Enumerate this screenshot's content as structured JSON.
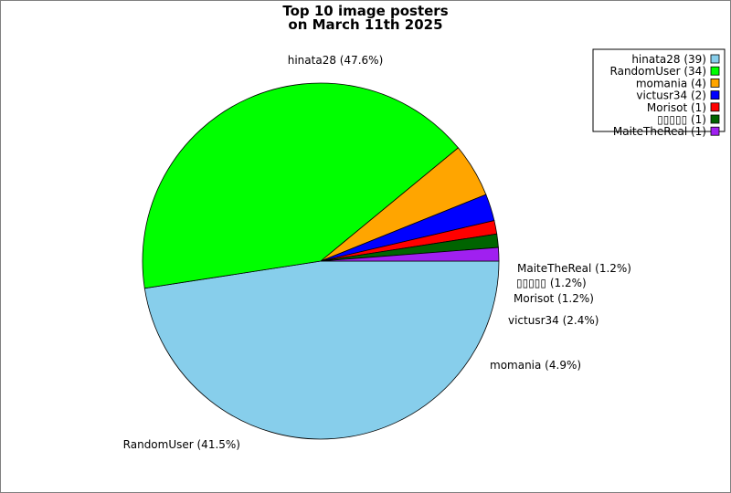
{
  "chart_data": {
    "type": "pie",
    "title": "Top 10 image posters",
    "subtitle": "on March 11th 2025",
    "slices": [
      {
        "name": "hinata28",
        "value": 39,
        "percent": "47.6%",
        "color": "#87ceeb",
        "legend": "hinata28 (39)",
        "label": "hinata28 (47.6%)"
      },
      {
        "name": "RandomUser",
        "value": 34,
        "percent": "41.5%",
        "color": "#00ff00",
        "legend": "RandomUser (34)",
        "label": "RandomUser (41.5%)"
      },
      {
        "name": "momania",
        "value": 4,
        "percent": "4.9%",
        "color": "#ffa500",
        "legend": "momania (4)",
        "label": "momania (4.9%)"
      },
      {
        "name": "victusr34",
        "value": 2,
        "percent": "2.4%",
        "color": "#0000ff",
        "legend": "victusr34 (2)",
        "label": "victusr34 (2.4%)"
      },
      {
        "name": "Morisot",
        "value": 1,
        "percent": "1.2%",
        "color": "#ff0000",
        "legend": "Morisot (1)",
        "label": "Morisot (1.2%)"
      },
      {
        "name": "▯▯▯▯▯",
        "value": 1,
        "percent": "1.2%",
        "color": "#006400",
        "legend": "▯▯▯▯▯ (1)",
        "label": "▯▯▯▯▯ (1.2%)"
      },
      {
        "name": "MaiteTheReal",
        "value": 1,
        "percent": "1.2%",
        "color": "#a020f0",
        "legend": "MaiteTheReal (1)",
        "label": "MaiteTheReal (1.2%)"
      }
    ],
    "legend_position": "top-right"
  }
}
